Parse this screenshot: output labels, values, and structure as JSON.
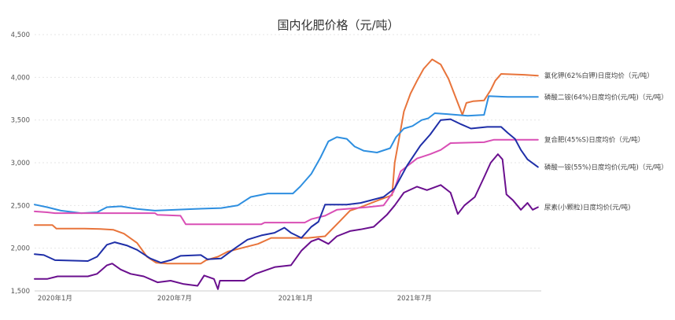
{
  "chart_data": {
    "type": "line",
    "title": "国内化肥价格（元/吨）",
    "xlabel": "",
    "ylabel": "",
    "ylim": [
      1500,
      4500
    ],
    "yticks": [
      1500,
      2000,
      2500,
      3000,
      3500,
      4000,
      4500
    ],
    "ytick_labels": [
      "1,500",
      "2,000",
      "2,500",
      "3,000",
      "3,500",
      "4,000",
      "4,500"
    ],
    "xlim": [
      "2019-12-01",
      "2022-01-10"
    ],
    "xticks": [
      "2020-01-01",
      "2020-07-01",
      "2021-01-01",
      "2021-07-01"
    ],
    "xtick_labels": [
      "2020年1月",
      "2020年7月",
      "2021年1月",
      "2021年7月"
    ],
    "grid": true,
    "legend": "right",
    "series": [
      {
        "name": "氯化钾(62%白钾)日度均价（元/吨）",
        "color": "#E8743B",
        "points": [
          [
            "2019-12-01",
            2270
          ],
          [
            "2019-12-28",
            2270
          ],
          [
            "2020-01-03",
            2230
          ],
          [
            "2020-02-15",
            2230
          ],
          [
            "2020-03-10",
            2225
          ],
          [
            "2020-03-30",
            2215
          ],
          [
            "2020-04-15",
            2170
          ],
          [
            "2020-05-05",
            2060
          ],
          [
            "2020-05-20",
            1900
          ],
          [
            "2020-06-03",
            1830
          ],
          [
            "2020-06-20",
            1820
          ],
          [
            "2020-08-10",
            1820
          ],
          [
            "2020-08-18",
            1860
          ],
          [
            "2020-09-05",
            1900
          ],
          [
            "2020-09-20",
            1960
          ],
          [
            "2020-10-10",
            2000
          ],
          [
            "2020-11-05",
            2050
          ],
          [
            "2020-11-25",
            2120
          ],
          [
            "2021-01-20",
            2120
          ],
          [
            "2021-02-15",
            2140
          ],
          [
            "2021-03-10",
            2320
          ],
          [
            "2021-03-25",
            2440
          ],
          [
            "2021-04-10",
            2480
          ],
          [
            "2021-05-10",
            2570
          ],
          [
            "2021-05-28",
            2620
          ],
          [
            "2021-06-01",
            3000
          ],
          [
            "2021-06-08",
            3300
          ],
          [
            "2021-06-15",
            3600
          ],
          [
            "2021-06-25",
            3810
          ],
          [
            "2021-07-05",
            3960
          ],
          [
            "2021-07-15",
            4100
          ],
          [
            "2021-07-28",
            4210
          ],
          [
            "2021-08-10",
            4150
          ],
          [
            "2021-08-22",
            3980
          ],
          [
            "2021-09-05",
            3700
          ],
          [
            "2021-09-12",
            3560
          ],
          [
            "2021-09-18",
            3700
          ],
          [
            "2021-09-28",
            3720
          ],
          [
            "2021-10-15",
            3730
          ],
          [
            "2021-10-25",
            3850
          ],
          [
            "2021-11-01",
            3960
          ],
          [
            "2021-11-10",
            4040
          ],
          [
            "2021-12-15",
            4030
          ],
          [
            "2022-01-05",
            4020
          ]
        ]
      },
      {
        "name": "磷酸二铵(64%)日度均价(元/吨)（元/吨）",
        "color": "#2E8FE0",
        "points": [
          [
            "2019-12-01",
            2510
          ],
          [
            "2019-12-20",
            2480
          ],
          [
            "2020-01-10",
            2440
          ],
          [
            "2020-02-10",
            2410
          ],
          [
            "2020-03-05",
            2420
          ],
          [
            "2020-03-20",
            2480
          ],
          [
            "2020-04-10",
            2490
          ],
          [
            "2020-05-05",
            2460
          ],
          [
            "2020-06-01",
            2440
          ],
          [
            "2020-08-01",
            2460
          ],
          [
            "2020-09-10",
            2470
          ],
          [
            "2020-10-05",
            2500
          ],
          [
            "2020-10-25",
            2600
          ],
          [
            "2020-11-20",
            2640
          ],
          [
            "2020-12-28",
            2640
          ],
          [
            "2021-01-08",
            2720
          ],
          [
            "2021-01-25",
            2870
          ],
          [
            "2021-02-08",
            3060
          ],
          [
            "2021-02-20",
            3250
          ],
          [
            "2021-03-05",
            3300
          ],
          [
            "2021-03-20",
            3280
          ],
          [
            "2021-04-01",
            3190
          ],
          [
            "2021-04-15",
            3140
          ],
          [
            "2021-05-05",
            3120
          ],
          [
            "2021-05-25",
            3170
          ],
          [
            "2021-06-03",
            3300
          ],
          [
            "2021-06-15",
            3400
          ],
          [
            "2021-06-28",
            3430
          ],
          [
            "2021-07-12",
            3500
          ],
          [
            "2021-07-22",
            3520
          ],
          [
            "2021-08-01",
            3580
          ],
          [
            "2021-08-20",
            3570
          ],
          [
            "2021-09-20",
            3550
          ],
          [
            "2021-10-15",
            3560
          ],
          [
            "2021-10-22",
            3780
          ],
          [
            "2021-11-20",
            3770
          ],
          [
            "2022-01-05",
            3770
          ]
        ]
      },
      {
        "name": "复合肥(45%S)日度均价（元/吨）",
        "color": "#D94FB5",
        "points": [
          [
            "2019-12-01",
            2430
          ],
          [
            "2019-12-20",
            2420
          ],
          [
            "2020-01-01",
            2410
          ],
          [
            "2020-06-01",
            2410
          ],
          [
            "2020-06-05",
            2390
          ],
          [
            "2020-07-10",
            2380
          ],
          [
            "2020-07-18",
            2280
          ],
          [
            "2020-11-10",
            2280
          ],
          [
            "2020-11-15",
            2300
          ],
          [
            "2021-01-15",
            2300
          ],
          [
            "2021-01-25",
            2340
          ],
          [
            "2021-02-15",
            2380
          ],
          [
            "2021-03-05",
            2450
          ],
          [
            "2021-04-20",
            2480
          ],
          [
            "2021-05-15",
            2500
          ],
          [
            "2021-05-30",
            2660
          ],
          [
            "2021-06-10",
            2900
          ],
          [
            "2021-06-20",
            2960
          ],
          [
            "2021-07-05",
            3050
          ],
          [
            "2021-07-25",
            3100
          ],
          [
            "2021-08-10",
            3150
          ],
          [
            "2021-08-25",
            3230
          ],
          [
            "2021-10-15",
            3240
          ],
          [
            "2021-10-30",
            3270
          ],
          [
            "2022-01-05",
            3270
          ]
        ]
      },
      {
        "name": "磷酸一铵(55%)日度均价(元/吨)（元/吨）",
        "color": "#1F2FA8",
        "points": [
          [
            "2019-12-01",
            1930
          ],
          [
            "2019-12-15",
            1920
          ],
          [
            "2020-01-01",
            1860
          ],
          [
            "2020-02-20",
            1850
          ],
          [
            "2020-03-05",
            1900
          ],
          [
            "2020-03-20",
            2040
          ],
          [
            "2020-04-01",
            2070
          ],
          [
            "2020-04-20",
            2030
          ],
          [
            "2020-05-05",
            1980
          ],
          [
            "2020-05-25",
            1880
          ],
          [
            "2020-06-10",
            1830
          ],
          [
            "2020-06-25",
            1860
          ],
          [
            "2020-07-10",
            1910
          ],
          [
            "2020-08-10",
            1920
          ],
          [
            "2020-08-20",
            1870
          ],
          [
            "2020-09-10",
            1880
          ],
          [
            "2020-10-01",
            2000
          ],
          [
            "2020-10-20",
            2100
          ],
          [
            "2020-11-10",
            2150
          ],
          [
            "2020-11-30",
            2180
          ],
          [
            "2020-12-15",
            2240
          ],
          [
            "2020-12-25",
            2180
          ],
          [
            "2021-01-10",
            2120
          ],
          [
            "2021-01-25",
            2250
          ],
          [
            "2021-02-05",
            2310
          ],
          [
            "2021-02-15",
            2510
          ],
          [
            "2021-03-20",
            2510
          ],
          [
            "2021-04-10",
            2530
          ],
          [
            "2021-05-15",
            2600
          ],
          [
            "2021-06-01",
            2700
          ],
          [
            "2021-06-20",
            2970
          ],
          [
            "2021-07-10",
            3200
          ],
          [
            "2021-07-25",
            3330
          ],
          [
            "2021-08-10",
            3500
          ],
          [
            "2021-08-25",
            3510
          ],
          [
            "2021-09-10",
            3450
          ],
          [
            "2021-09-25",
            3400
          ],
          [
            "2021-10-20",
            3420
          ],
          [
            "2021-11-10",
            3420
          ],
          [
            "2021-11-20",
            3350
          ],
          [
            "2021-12-01",
            3280
          ],
          [
            "2021-12-10",
            3150
          ],
          [
            "2021-12-20",
            3040
          ],
          [
            "2022-01-05",
            2950
          ]
        ]
      },
      {
        "name": "尿素(小颗粒)日度均价(元/吨)",
        "color": "#6A0F8E",
        "points": [
          [
            "2019-12-01",
            1640
          ],
          [
            "2019-12-20",
            1640
          ],
          [
            "2020-01-05",
            1670
          ],
          [
            "2020-02-20",
            1670
          ],
          [
            "2020-03-05",
            1700
          ],
          [
            "2020-03-20",
            1800
          ],
          [
            "2020-03-28",
            1820
          ],
          [
            "2020-04-10",
            1750
          ],
          [
            "2020-04-25",
            1700
          ],
          [
            "2020-05-15",
            1670
          ],
          [
            "2020-06-05",
            1600
          ],
          [
            "2020-06-25",
            1620
          ],
          [
            "2020-07-15",
            1580
          ],
          [
            "2020-08-05",
            1560
          ],
          [
            "2020-08-15",
            1680
          ],
          [
            "2020-08-30",
            1640
          ],
          [
            "2020-09-05",
            1520
          ],
          [
            "2020-09-08",
            1620
          ],
          [
            "2020-10-15",
            1620
          ],
          [
            "2020-11-01",
            1700
          ],
          [
            "2020-12-01",
            1780
          ],
          [
            "2020-12-25",
            1800
          ],
          [
            "2021-01-10",
            1970
          ],
          [
            "2021-01-25",
            2080
          ],
          [
            "2021-02-05",
            2110
          ],
          [
            "2021-02-20",
            2050
          ],
          [
            "2021-03-05",
            2140
          ],
          [
            "2021-03-25",
            2200
          ],
          [
            "2021-04-10",
            2220
          ],
          [
            "2021-04-30",
            2250
          ],
          [
            "2021-05-20",
            2390
          ],
          [
            "2021-06-01",
            2500
          ],
          [
            "2021-06-15",
            2650
          ],
          [
            "2021-07-05",
            2720
          ],
          [
            "2021-07-20",
            2680
          ],
          [
            "2021-08-10",
            2740
          ],
          [
            "2021-08-25",
            2650
          ],
          [
            "2021-09-05",
            2400
          ],
          [
            "2021-09-15",
            2500
          ],
          [
            "2021-10-01",
            2600
          ],
          [
            "2021-10-15",
            2830
          ],
          [
            "2021-10-25",
            3000
          ],
          [
            "2021-11-05",
            3100
          ],
          [
            "2021-11-12",
            3040
          ],
          [
            "2021-11-18",
            2630
          ],
          [
            "2021-11-28",
            2560
          ],
          [
            "2021-12-10",
            2450
          ],
          [
            "2021-12-20",
            2530
          ],
          [
            "2021-12-28",
            2450
          ],
          [
            "2022-01-05",
            2480
          ]
        ]
      }
    ]
  }
}
